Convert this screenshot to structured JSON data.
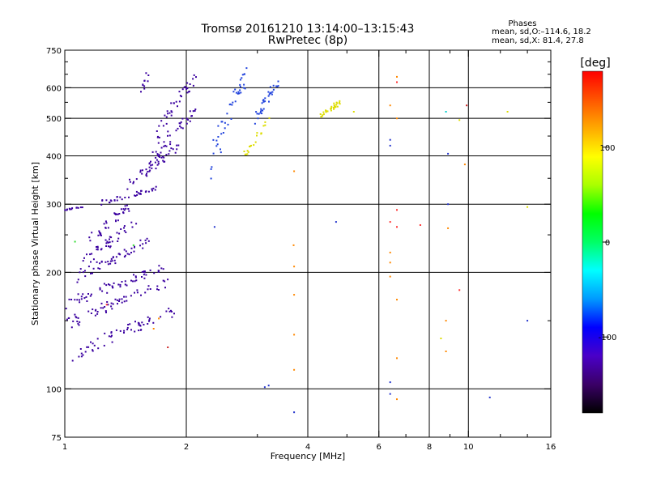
{
  "chart_data": {
    "type": "scatter",
    "title": "Tromsø 20161210 13:14:00–13:15:43",
    "subtitle": "RwPretec (8p)",
    "xlabel": "Frequency [MHz]",
    "ylabel": "Stationary phase Virtual Height [km]",
    "x_scale": "log",
    "y_scale": "log",
    "xlim": [
      1,
      16
    ],
    "ylim": [
      75,
      750
    ],
    "x_ticks": [
      1,
      2,
      4,
      6,
      8,
      10,
      16
    ],
    "x_tick_labels": [
      "1",
      "2",
      "4",
      "6",
      "8",
      "10",
      "16"
    ],
    "y_ticks": [
      75,
      100,
      200,
      300,
      400,
      500,
      600,
      750
    ],
    "y_tick_labels": [
      "75",
      "100",
      "200",
      "300",
      "400",
      "500",
      "600",
      "750"
    ],
    "x_minor_ticks": [
      3,
      5,
      7,
      9,
      12,
      14
    ],
    "y_minor_ticks": [
      150,
      250,
      350,
      450,
      550,
      650,
      700
    ],
    "x_grid": [
      2,
      4,
      6,
      8,
      10
    ],
    "y_grid": [
      100,
      200,
      300,
      400,
      500,
      600
    ],
    "grid": true,
    "phase_stats": {
      "title": "Phases",
      "o_line": "mean, sd,O:–114.6, 18.2",
      "x_line": "mean, sd,X:  81.4, 27.8"
    },
    "colorbar": {
      "label": "[deg]",
      "min": -180,
      "max": 180,
      "ticks": [
        100,
        0,
        -100
      ],
      "tick_labels": [
        "100",
        "0",
        "-100"
      ],
      "colors": [
        "#000000",
        "#3a0066",
        "#4a00c8",
        "#0000ff",
        "#0099ff",
        "#00ffff",
        "#00ff66",
        "#00ff00",
        "#aaff00",
        "#ffff00",
        "#ffaa00",
        "#ff5500",
        "#ff0000"
      ]
    },
    "series": [
      {
        "color_hint": "#3a00a0",
        "traces": [
          {
            "f0": 1.0,
            "f1": 1.9,
            "h0": 120,
            "h1": 160,
            "n": 60
          },
          {
            "f0": 1.0,
            "f1": 1.8,
            "h0": 145,
            "h1": 190,
            "n": 60
          },
          {
            "f0": 1.0,
            "f1": 1.75,
            "h0": 165,
            "h1": 205,
            "n": 60
          },
          {
            "f0": 1.05,
            "f1": 1.6,
            "h0": 190,
            "h1": 240,
            "n": 50
          },
          {
            "f0": 1.1,
            "f1": 1.5,
            "h0": 210,
            "h1": 270,
            "n": 40
          },
          {
            "f0": 1.15,
            "f1": 1.45,
            "h0": 240,
            "h1": 300,
            "n": 35
          },
          {
            "f0": 1.0,
            "f1": 1.1,
            "h0": 290,
            "h1": 295,
            "n": 12
          },
          {
            "f0": 1.2,
            "f1": 1.7,
            "h0": 300,
            "h1": 330,
            "n": 35
          },
          {
            "f0": 1.4,
            "f1": 1.9,
            "h0": 330,
            "h1": 420,
            "n": 40
          },
          {
            "f0": 1.6,
            "f1": 2.1,
            "h0": 380,
            "h1": 520,
            "n": 45
          },
          {
            "f0": 1.7,
            "f1": 2.1,
            "h0": 450,
            "h1": 640,
            "n": 40
          },
          {
            "f0": 1.55,
            "f1": 1.6,
            "h0": 580,
            "h1": 650,
            "n": 10
          }
        ]
      },
      {
        "color_hint": "#2244dd",
        "traces": [
          {
            "f0": 2.3,
            "f1": 2.8,
            "h0": 380,
            "h1": 650,
            "n": 45
          },
          {
            "f0": 3.0,
            "f1": 3.4,
            "h0": 500,
            "h1": 630,
            "n": 35
          }
        ]
      },
      {
        "color_hint": "#dddd00",
        "traces": [
          {
            "f0": 2.8,
            "f1": 3.2,
            "h0": 400,
            "h1": 500,
            "n": 20
          },
          {
            "f0": 4.3,
            "f1": 4.8,
            "h0": 505,
            "h1": 550,
            "n": 30
          }
        ]
      }
    ],
    "scattered_points": [
      {
        "x": 1.06,
        "y": 240,
        "c": "#33dd33"
      },
      {
        "x": 1.48,
        "y": 235,
        "c": "#33dd33"
      },
      {
        "x": 1.27,
        "y": 165,
        "c": "#ff3333"
      },
      {
        "x": 1.66,
        "y": 143,
        "c": "#ff8800"
      },
      {
        "x": 1.71,
        "y": 152,
        "c": "#ff8800"
      },
      {
        "x": 1.8,
        "y": 128,
        "c": "#cc2222"
      },
      {
        "x": 2.35,
        "y": 262,
        "c": "#2233cc"
      },
      {
        "x": 3.13,
        "y": 101,
        "c": "#2233cc"
      },
      {
        "x": 3.2,
        "y": 102,
        "c": "#2233cc"
      },
      {
        "x": 3.69,
        "y": 235,
        "c": "#ff8800"
      },
      {
        "x": 3.7,
        "y": 207,
        "c": "#ff8800"
      },
      {
        "x": 3.7,
        "y": 175,
        "c": "#ff8800"
      },
      {
        "x": 3.7,
        "y": 138,
        "c": "#ff8800"
      },
      {
        "x": 3.7,
        "y": 365,
        "c": "#ff8800"
      },
      {
        "x": 3.7,
        "y": 112,
        "c": "#ff8800"
      },
      {
        "x": 3.7,
        "y": 87,
        "c": "#2233cc"
      },
      {
        "x": 4.7,
        "y": 270,
        "c": "#2233cc"
      },
      {
        "x": 5.2,
        "y": 520,
        "c": "#dddd00"
      },
      {
        "x": 6.4,
        "y": 540,
        "c": "#ff8800"
      },
      {
        "x": 6.4,
        "y": 440,
        "c": "#2233cc"
      },
      {
        "x": 6.4,
        "y": 425,
        "c": "#2233cc"
      },
      {
        "x": 6.4,
        "y": 270,
        "c": "#ff3333"
      },
      {
        "x": 6.4,
        "y": 225,
        "c": "#ff8800"
      },
      {
        "x": 6.4,
        "y": 212,
        "c": "#ff8800"
      },
      {
        "x": 6.4,
        "y": 195,
        "c": "#ff8800"
      },
      {
        "x": 6.4,
        "y": 104,
        "c": "#2233cc"
      },
      {
        "x": 6.4,
        "y": 97,
        "c": "#2233cc"
      },
      {
        "x": 6.65,
        "y": 640,
        "c": "#ff8800"
      },
      {
        "x": 6.65,
        "y": 620,
        "c": "#ff3333"
      },
      {
        "x": 6.65,
        "y": 500,
        "c": "#ff8800"
      },
      {
        "x": 6.65,
        "y": 290,
        "c": "#ff3333"
      },
      {
        "x": 6.65,
        "y": 262,
        "c": "#ff3333"
      },
      {
        "x": 6.65,
        "y": 170,
        "c": "#ff8800"
      },
      {
        "x": 6.65,
        "y": 120,
        "c": "#ff8800"
      },
      {
        "x": 6.65,
        "y": 94,
        "c": "#ff8800"
      },
      {
        "x": 7.6,
        "y": 265,
        "c": "#ff3333"
      },
      {
        "x": 8.55,
        "y": 135,
        "c": "#dddd00"
      },
      {
        "x": 8.8,
        "y": 520,
        "c": "#00cccc"
      },
      {
        "x": 8.8,
        "y": 150,
        "c": "#ff8800"
      },
      {
        "x": 8.8,
        "y": 125,
        "c": "#ff8800"
      },
      {
        "x": 8.9,
        "y": 300,
        "c": "#2233cc"
      },
      {
        "x": 8.9,
        "y": 260,
        "c": "#ff8800"
      },
      {
        "x": 8.9,
        "y": 405,
        "c": "#2233cc"
      },
      {
        "x": 9.5,
        "y": 495,
        "c": "#dddd00"
      },
      {
        "x": 9.5,
        "y": 180,
        "c": "#ff3333"
      },
      {
        "x": 9.8,
        "y": 380,
        "c": "#ff8800"
      },
      {
        "x": 9.9,
        "y": 540,
        "c": "#cc2222"
      },
      {
        "x": 11.3,
        "y": 95,
        "c": "#2233cc"
      },
      {
        "x": 12.5,
        "y": 520,
        "c": "#dddd00"
      },
      {
        "x": 14.0,
        "y": 295,
        "c": "#dddd00"
      },
      {
        "x": 14.0,
        "y": 150,
        "c": "#2233cc"
      }
    ]
  }
}
